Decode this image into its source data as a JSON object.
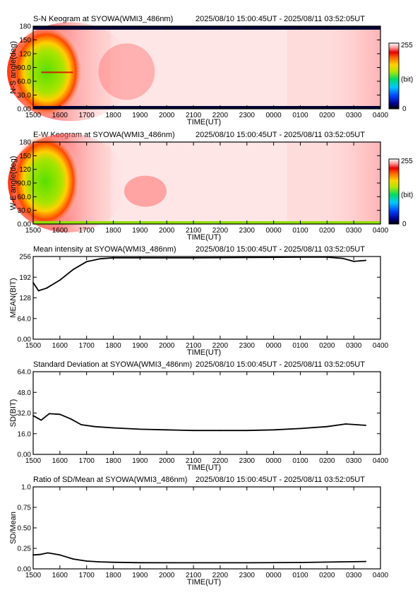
{
  "chart_data": [
    {
      "type": "heatmap",
      "title": "S-N Keogram at SYOWA(WMI3_486nm)",
      "time_range": "2025/08/10 15:00:45UT - 2025/08/11 03:52:05UT",
      "xlabel": "TIME(UT)",
      "ylabel": "N-S angle(deg)",
      "xticks": [
        "1500",
        "1600",
        "1700",
        "1800",
        "1900",
        "2000",
        "2100",
        "2200",
        "2300",
        "0000",
        "0100",
        "0200",
        "0300",
        "0400"
      ],
      "yticks": [
        "0.00",
        "30.0",
        "60.0",
        "90.0",
        "120",
        "150",
        "180"
      ],
      "ylim": [
        0,
        180
      ],
      "colorbar": {
        "min_label": "0",
        "max_label": "255",
        "unit": "(bit)"
      }
    },
    {
      "type": "heatmap",
      "title": "E-W Keogram at SYOWA(WMI3_486nm)",
      "time_range": "2025/08/10 15:00:45UT - 2025/08/11 03:52:05UT",
      "xlabel": "TIME(UT)",
      "ylabel": "W-E angle(deg)",
      "xticks": [
        "1500",
        "1600",
        "1700",
        "1800",
        "1900",
        "2000",
        "2100",
        "2200",
        "2300",
        "0000",
        "0100",
        "0200",
        "0300",
        "0400"
      ],
      "yticks": [
        "0.00",
        "30.0",
        "60.0",
        "90.0",
        "120",
        "150",
        "180"
      ],
      "ylim": [
        0,
        180
      ],
      "colorbar": {
        "min_label": "0",
        "max_label": "255",
        "unit": "(bit)"
      }
    },
    {
      "type": "line",
      "title": "Mean intensity at SYOWA(WMI3_486nm)",
      "time_range": "2025/08/10 15:00:45UT - 2025/08/11 03:52:05UT",
      "xlabel": "TIME(UT)",
      "ylabel": "MEAN(BIT)",
      "xticks": [
        "1500",
        "1600",
        "1700",
        "1800",
        "1900",
        "2000",
        "2100",
        "2200",
        "2300",
        "0000",
        "0100",
        "0200",
        "0300",
        "0400"
      ],
      "yticks": [
        "0.00",
        "64.0",
        "128",
        "192",
        "256"
      ],
      "ylim": [
        0,
        256
      ],
      "x_hours": [
        0,
        0.2,
        0.5,
        1.0,
        1.5,
        2.0,
        2.5,
        3.0,
        4.0,
        6.0,
        8.0,
        10.0,
        11.0,
        11.6,
        12.0,
        12.45
      ],
      "values": [
        175,
        150,
        158,
        183,
        216,
        240,
        249,
        252,
        252,
        252,
        253,
        254,
        254,
        250,
        241,
        244
      ]
    },
    {
      "type": "line",
      "title": "Standard Deviation at SYOWA(WMI3_486nm)",
      "time_range": "2025/08/10 15:00:45UT - 2025/08/11 03:52:05UT",
      "xlabel": "TIME(UT)",
      "ylabel": "SD(BIT)",
      "xticks": [
        "1500",
        "1600",
        "1700",
        "1800",
        "1900",
        "2000",
        "2100",
        "2200",
        "2300",
        "0000",
        "0100",
        "0200",
        "0300",
        "0400"
      ],
      "yticks": [
        "0.00",
        "16.0",
        "32.0",
        "48.0",
        "64.0"
      ],
      "ylim": [
        0,
        64
      ],
      "x_hours": [
        0,
        0.3,
        0.6,
        1.0,
        1.4,
        1.8,
        2.3,
        3.0,
        4.0,
        5.0,
        6.0,
        7.0,
        8.0,
        9.0,
        10.0,
        11.0,
        11.7,
        12.45
      ],
      "values": [
        30,
        26.5,
        31.5,
        31,
        27.5,
        23,
        21.5,
        20.5,
        19.5,
        19,
        18.5,
        18.5,
        18.5,
        19,
        20,
        21.5,
        23.5,
        22.5
      ]
    },
    {
      "type": "line",
      "title": "Ratio of SD/Mean at SYOWA(WMI3_486nm)",
      "time_range": "2025/08/10 15:00:45UT - 2025/08/11 03:52:05UT",
      "xlabel": "TIME(UT)",
      "ylabel": "SD/Mean",
      "xticks": [
        "1500",
        "1600",
        "1700",
        "1800",
        "1900",
        "2000",
        "2100",
        "2200",
        "2300",
        "0000",
        "0100",
        "0200",
        "0300",
        "0400"
      ],
      "yticks": [
        "0.00",
        "0.25",
        "0.50",
        "0.75",
        "1.0"
      ],
      "ylim": [
        0,
        1.0
      ],
      "x_hours": [
        0,
        0.25,
        0.55,
        1.0,
        1.5,
        2.0,
        2.5,
        3.0,
        4.0,
        6.0,
        8.0,
        10.0,
        11.5,
        12.45
      ],
      "values": [
        0.17,
        0.175,
        0.195,
        0.17,
        0.12,
        0.095,
        0.085,
        0.08,
        0.075,
        0.074,
        0.074,
        0.078,
        0.085,
        0.09
      ]
    }
  ]
}
